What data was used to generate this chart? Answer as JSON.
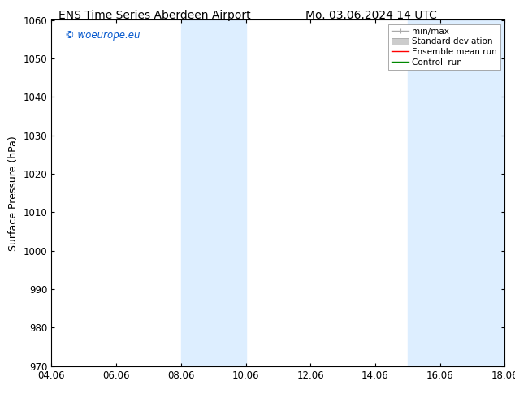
{
  "title_left": "ENS Time Series Aberdeen Airport",
  "title_right": "Mo. 03.06.2024 14 UTC",
  "ylabel": "Surface Pressure (hPa)",
  "ylim": [
    970,
    1060
  ],
  "yticks": [
    970,
    980,
    990,
    1000,
    1010,
    1020,
    1030,
    1040,
    1050,
    1060
  ],
  "xlim_start": 0.0,
  "xlim_end": 14.0,
  "xtick_positions": [
    0,
    2,
    4,
    6,
    8,
    10,
    12,
    14
  ],
  "xtick_labels": [
    "04.06",
    "06.06",
    "08.06",
    "10.06",
    "12.06",
    "14.06",
    "16.06",
    "18.06"
  ],
  "shaded_bands": [
    {
      "xstart": 4.0,
      "xend": 6.0
    },
    {
      "xstart": 11.0,
      "xend": 14.0
    }
  ],
  "shade_color": "#ddeeff",
  "background_color": "#ffffff",
  "watermark_text": "© woeurope.eu",
  "watermark_color": "#0055cc",
  "legend_entries": [
    {
      "label": "min/max",
      "color": "#aaaaaa",
      "lw": 1.0
    },
    {
      "label": "Standard deviation",
      "color": "#cccccc",
      "lw": 5
    },
    {
      "label": "Ensemble mean run",
      "color": "#ff0000",
      "lw": 1.0
    },
    {
      "label": "Controll run",
      "color": "#008800",
      "lw": 1.0
    }
  ],
  "title_fontsize": 10,
  "axis_fontsize": 9,
  "tick_fontsize": 8.5,
  "watermark_fontsize": 8.5,
  "legend_fontsize": 7.5
}
